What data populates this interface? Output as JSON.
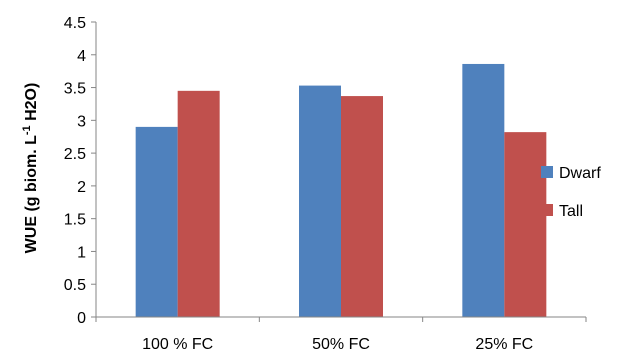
{
  "chart_data": {
    "type": "bar",
    "title": "",
    "xlabel": "",
    "ylabel": {
      "prefix": "WUE (g biom. L",
      "superscript": "-1",
      "suffix": " H2O)"
    },
    "categories": [
      "100 % FC",
      "50% FC",
      "25% FC"
    ],
    "series": [
      {
        "name": "Dwarf",
        "color": "#4F81BD",
        "values": [
          2.9,
          3.53,
          3.86
        ]
      },
      {
        "name": "Tall",
        "color": "#C0504D",
        "values": [
          3.45,
          3.37,
          2.82
        ]
      }
    ],
    "ylim": [
      0,
      4.5
    ],
    "yticks": [
      0,
      0.5,
      1,
      1.5,
      2,
      2.5,
      3,
      3.5,
      4,
      4.5
    ],
    "ytick_labels": [
      "0",
      "0.5",
      "1",
      "1.5",
      "2",
      "2.5",
      "3",
      "3.5",
      "4",
      "4.5"
    ],
    "grid": false,
    "legend_position": "right"
  }
}
